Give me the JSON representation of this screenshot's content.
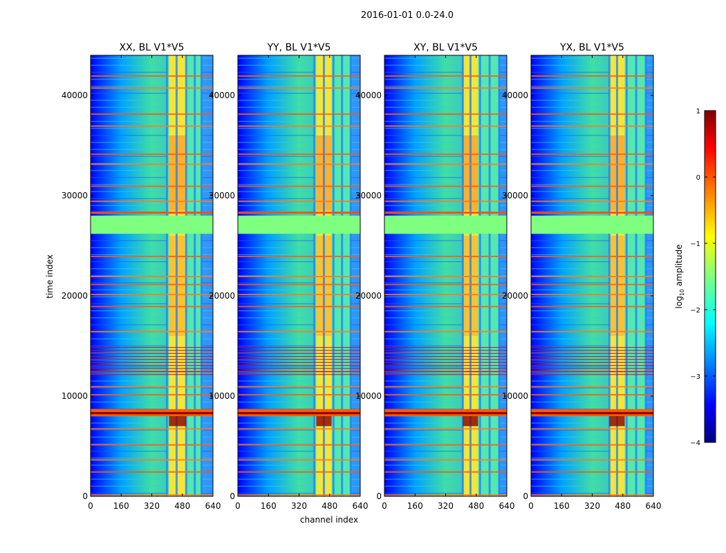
{
  "chart_data": {
    "type": "heatmap",
    "suptitle": "2016-01-01 0.0-24.0",
    "xlabel": "channel index",
    "ylabel": "time index",
    "xlim": [
      0,
      640
    ],
    "ylim": [
      0,
      44000
    ],
    "xticks": [
      0,
      160,
      320,
      480,
      640
    ],
    "yticks": [
      0,
      10000,
      20000,
      30000,
      40000
    ],
    "colormap": "jet",
    "panels": [
      {
        "title": "XX, BL V1*V5",
        "rfi_band": [
          400,
          580
        ],
        "strong_band": [
          410,
          500
        ],
        "feature_channels": [
          400,
          450,
          500,
          545,
          580
        ]
      },
      {
        "title": "YY, BL V1*V5",
        "rfi_band": [
          400,
          590
        ],
        "strong_band": [
          410,
          490
        ],
        "feature_channels": [
          400,
          450,
          500,
          545,
          590
        ]
      },
      {
        "title": "XY, BL V1*V5",
        "rfi_band": [
          410,
          600
        ],
        "strong_band": [
          410,
          490
        ],
        "feature_channels": [
          410,
          450,
          500,
          550,
          600
        ]
      },
      {
        "title": "YX, BL V1*V5",
        "rfi_band": [
          410,
          600
        ],
        "strong_band": [
          410,
          490
        ],
        "feature_channels": [
          410,
          450,
          500,
          550,
          600
        ]
      }
    ],
    "flagged_time_block": [
      26200,
      28000
    ],
    "bright_time_band": [
      8000,
      8700
    ],
    "colorbar": {
      "label": "log10 amplitude",
      "label_main": "log",
      "label_sub": "10",
      "label_rest": " amplitude",
      "range": [
        -4,
        1
      ],
      "ticks": [
        1,
        0,
        -1,
        -2,
        -3,
        -4
      ],
      "tick_labels": [
        "1",
        "0",
        "−1",
        "−2",
        "−3",
        "−4"
      ]
    }
  }
}
